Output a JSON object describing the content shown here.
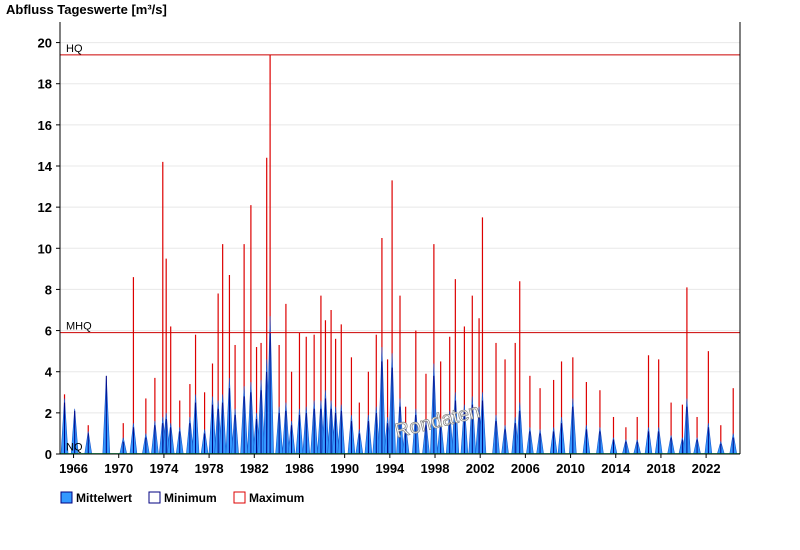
{
  "chart_data": {
    "type": "line",
    "title": "Abfluss Tageswerte [m³/s]",
    "xlabel": "",
    "ylabel": "",
    "xlim": [
      1964.8,
      2025.0
    ],
    "ylim": [
      0,
      21
    ],
    "y_ticks": [
      0,
      2,
      4,
      6,
      8,
      10,
      12,
      14,
      16,
      18,
      20
    ],
    "x_ticks": [
      1966,
      1970,
      1974,
      1978,
      1982,
      1986,
      1990,
      1994,
      1998,
      2002,
      2006,
      2010,
      2014,
      2018,
      2022
    ],
    "grid": true,
    "legend_position": "bottom-left",
    "reference_lines": [
      {
        "label": "HQ",
        "value": 19.4,
        "color": "#cc0000"
      },
      {
        "label": "MHQ",
        "value": 5.9,
        "color": "#cc0000"
      },
      {
        "label": "NQ",
        "value": 0.02,
        "color": "#00aa44"
      }
    ],
    "watermark": "Rondaten",
    "series": [
      {
        "name": "Maximum",
        "color": "#dd0000",
        "kind": "peaks",
        "x": [
          1965.2,
          1966.1,
          1967.3,
          1968.9,
          1970.4,
          1971.3,
          1972.4,
          1973.2,
          1973.9,
          1974.2,
          1974.6,
          1975.4,
          1976.3,
          1976.8,
          1977.6,
          1978.3,
          1978.8,
          1979.2,
          1979.8,
          1980.3,
          1981.1,
          1981.7,
          1982.2,
          1982.6,
          1983.1,
          1983.4,
          1984.2,
          1984.8,
          1985.3,
          1986.0,
          1986.6,
          1987.3,
          1987.9,
          1988.3,
          1988.8,
          1989.2,
          1989.7,
          1990.6,
          1991.3,
          1992.1,
          1992.8,
          1993.3,
          1993.8,
          1994.2,
          1994.9,
          1995.4,
          1996.3,
          1997.2,
          1997.9,
          1998.5,
          1999.3,
          1999.8,
          2000.6,
          2001.3,
          2001.9,
          2002.2,
          2003.4,
          2004.2,
          2005.1,
          2005.5,
          2006.4,
          2007.3,
          2008.5,
          2009.2,
          2010.2,
          2011.4,
          2012.6,
          2013.8,
          2014.9,
          2015.9,
          2016.9,
          2017.8,
          2018.9,
          2019.9,
          2020.3,
          2021.2,
          2022.2,
          2023.3,
          2024.4
        ],
        "values": [
          2.9,
          1.9,
          1.4,
          1.8,
          1.5,
          8.6,
          2.7,
          3.7,
          14.2,
          9.5,
          6.2,
          2.6,
          3.4,
          5.8,
          3.0,
          4.4,
          7.8,
          10.2,
          8.7,
          5.3,
          10.2,
          12.1,
          5.2,
          5.4,
          14.4,
          19.4,
          5.3,
          7.3,
          4.0,
          5.9,
          5.7,
          5.8,
          7.7,
          6.5,
          7.0,
          5.6,
          6.3,
          4.7,
          2.5,
          4.0,
          5.8,
          10.5,
          4.6,
          13.3,
          7.7,
          2.3,
          6.0,
          3.9,
          10.2,
          4.5,
          5.7,
          8.5,
          6.2,
          7.7,
          6.6,
          11.5,
          5.4,
          4.6,
          5.4,
          8.4,
          3.8,
          3.2,
          3.6,
          4.5,
          4.7,
          3.5,
          3.1,
          1.8,
          1.3,
          1.8,
          4.8,
          4.6,
          2.5,
          2.4,
          8.1,
          1.8,
          5.0,
          1.4,
          3.2
        ]
      },
      {
        "name": "Mittelwert",
        "color": "#3399ff",
        "kind": "area",
        "x": [
          1965.2,
          1966.1,
          1967.3,
          1968.9,
          1970.4,
          1971.3,
          1972.4,
          1973.2,
          1973.9,
          1974.2,
          1974.6,
          1975.4,
          1976.3,
          1976.8,
          1977.6,
          1978.3,
          1978.8,
          1979.2,
          1979.8,
          1980.3,
          1981.1,
          1981.7,
          1982.2,
          1982.6,
          1983.1,
          1983.4,
          1984.2,
          1984.8,
          1985.3,
          1986.0,
          1986.6,
          1987.3,
          1987.9,
          1988.3,
          1988.8,
          1989.2,
          1989.7,
          1990.6,
          1991.3,
          1992.1,
          1992.8,
          1993.3,
          1993.8,
          1994.2,
          1994.9,
          1995.4,
          1996.3,
          1997.2,
          1997.9,
          1998.5,
          1999.3,
          1999.8,
          2000.6,
          2001.3,
          2001.9,
          2002.2,
          2003.4,
          2004.2,
          2005.1,
          2005.5,
          2006.4,
          2007.3,
          2008.5,
          2009.2,
          2010.2,
          2011.4,
          2012.6,
          2013.8,
          2014.9,
          2015.9,
          2016.9,
          2017.8,
          2018.9,
          2019.9,
          2020.3,
          2021.2,
          2022.2,
          2023.3,
          2024.4
        ],
        "values": [
          2.7,
          2.2,
          1.1,
          3.8,
          0.8,
          1.5,
          1.0,
          1.6,
          1.8,
          2.0,
          1.5,
          1.3,
          1.8,
          2.9,
          1.2,
          2.8,
          2.6,
          2.9,
          3.7,
          2.2,
          3.3,
          3.5,
          2.0,
          3.6,
          4.6,
          6.7,
          2.3,
          2.5,
          1.6,
          2.2,
          2.3,
          2.6,
          2.6,
          3.1,
          2.6,
          2.3,
          2.4,
          1.9,
          1.2,
          1.9,
          2.3,
          5.2,
          1.8,
          4.9,
          2.7,
          1.4,
          2.2,
          1.6,
          4.4,
          1.7,
          2.1,
          3.0,
          2.4,
          2.8,
          2.3,
          3.0,
          1.9,
          1.4,
          1.8,
          2.5,
          1.3,
          1.2,
          1.3,
          1.8,
          2.7,
          1.4,
          1.3,
          0.8,
          0.7,
          0.7,
          1.3,
          1.3,
          0.9,
          0.8,
          2.7,
          0.8,
          1.5,
          0.6,
          1.0
        ]
      },
      {
        "name": "Minimum",
        "color": "#000080",
        "kind": "line",
        "x": [
          1965.2,
          1966.1,
          1967.3,
          1968.9,
          1970.4,
          1971.3,
          1972.4,
          1973.2,
          1973.9,
          1974.2,
          1974.6,
          1975.4,
          1976.3,
          1976.8,
          1977.6,
          1978.3,
          1978.8,
          1979.2,
          1979.8,
          1980.3,
          1981.1,
          1981.7,
          1982.2,
          1982.6,
          1983.1,
          1983.4,
          1984.2,
          1984.8,
          1985.3,
          1986.0,
          1986.6,
          1987.3,
          1987.9,
          1988.3,
          1988.8,
          1989.2,
          1989.7,
          1990.6,
          1991.3,
          1992.1,
          1992.8,
          1993.3,
          1993.8,
          1994.2,
          1994.9,
          1995.4,
          1996.3,
          1997.2,
          1997.9,
          1998.5,
          1999.3,
          1999.8,
          2000.6,
          2001.3,
          2001.9,
          2002.2,
          2003.4,
          2004.2,
          2005.1,
          2005.5,
          2006.4,
          2007.3,
          2008.5,
          2009.2,
          2010.2,
          2011.4,
          2012.6,
          2013.8,
          2014.9,
          2015.9,
          2016.9,
          2017.8,
          2018.9,
          2019.9,
          2020.3,
          2021.2,
          2022.2,
          2023.3,
          2024.4
        ],
        "values": [
          2.5,
          2.1,
          1.0,
          3.8,
          0.6,
          1.3,
          0.8,
          1.4,
          1.5,
          1.7,
          1.3,
          1.1,
          1.5,
          2.5,
          1.0,
          2.4,
          2.2,
          2.5,
          3.2,
          1.9,
          2.8,
          3.0,
          1.7,
          3.1,
          4.0,
          5.9,
          2.0,
          2.1,
          1.4,
          1.9,
          2.0,
          2.2,
          2.2,
          2.7,
          2.2,
          2.0,
          2.1,
          1.6,
          1.0,
          1.6,
          2.0,
          4.5,
          1.5,
          4.2,
          2.3,
          1.2,
          1.9,
          1.4,
          3.8,
          1.5,
          1.8,
          2.6,
          2.1,
          2.4,
          2.0,
          2.6,
          1.6,
          1.2,
          1.5,
          2.1,
          1.1,
          1.0,
          1.1,
          1.5,
          2.3,
          1.2,
          1.1,
          0.7,
          0.6,
          0.6,
          1.1,
          1.1,
          0.8,
          0.7,
          2.3,
          0.7,
          1.3,
          0.5,
          0.8
        ]
      }
    ]
  },
  "legend": {
    "items": [
      {
        "label": "Mittelwert",
        "fill": "#3399ff",
        "border": "#000080"
      },
      {
        "label": "Minimum",
        "fill": "#ffffff",
        "border": "#000080"
      },
      {
        "label": "Maximum",
        "fill": "#ffffff",
        "border": "#dd0000"
      }
    ]
  }
}
